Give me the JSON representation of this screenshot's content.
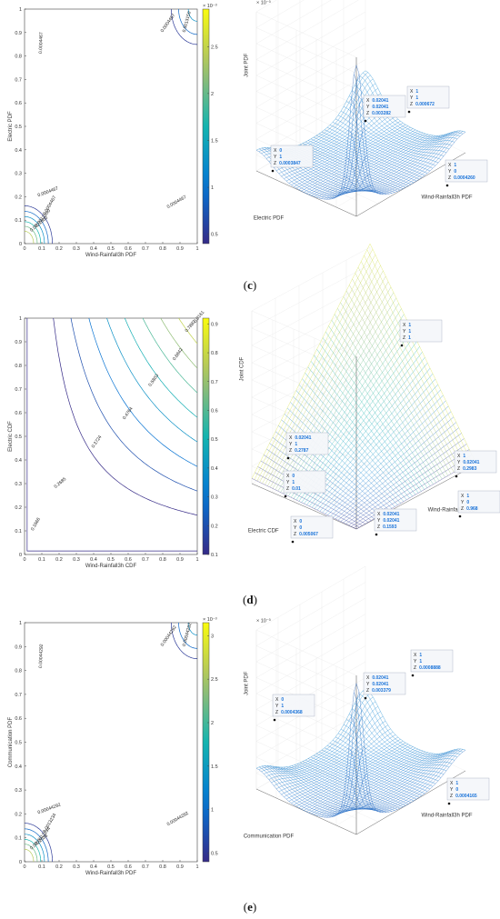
{
  "panels": [
    {
      "label_open": "(",
      "label_letter": "c",
      "label_close": ")",
      "contour": {
        "type": "contour",
        "xlabel": "Wind-Rainfall3h PDF",
        "ylabel": "Electric PDF",
        "x_ticks": [
          "0",
          "0.1",
          "0.2",
          "0.3",
          "0.4",
          "0.5",
          "0.6",
          "0.7",
          "0.8",
          "0.9",
          "1"
        ],
        "y_ticks": [
          "0",
          "0.1",
          "0.2",
          "0.3",
          "0.4",
          "0.5",
          "0.6",
          "0.7",
          "0.8",
          "0.9",
          "1"
        ],
        "xlim": [
          0,
          1
        ],
        "ylim": [
          0,
          1
        ],
        "colorbar_exp": "× 10⁻³",
        "colorbar_ticks": [
          "0.5",
          "1",
          "1.5",
          "2",
          "2.5"
        ],
        "colorbar_range": [
          0.4,
          2.9
        ],
        "contour_labels": [
          "0.0004467",
          "0.0004467",
          "0.0013150",
          "0.0004467",
          "0.0004467",
          "0.0013150",
          "0.0021800",
          "0.0004467"
        ]
      },
      "surface": {
        "type": "surface3d",
        "xlabel": "Wind-Rainfall3h PDF",
        "ylabel": "Electric PDF",
        "zlabel": "Joint PDF",
        "z_exp": "× 10⁻³",
        "peak": "narrow",
        "datatips": [
          {
            "lines": [
              [
                "X",
                "0"
              ],
              [
                "Y",
                "1"
              ],
              [
                "Z",
                "0.0003847"
              ]
            ]
          },
          {
            "lines": [
              [
                "X",
                "0.02041"
              ],
              [
                "Y",
                "0.02041"
              ],
              [
                "Z",
                "0.003282"
              ]
            ]
          },
          {
            "lines": [
              [
                "X",
                "1"
              ],
              [
                "Y",
                "1"
              ],
              [
                "Z",
                "0.000672"
              ]
            ]
          },
          {
            "lines": [
              [
                "X",
                "1"
              ],
              [
                "Y",
                "0"
              ],
              [
                "Z",
                "0.0004260"
              ]
            ]
          }
        ]
      }
    },
    {
      "label_open": "(",
      "label_letter": "d",
      "label_close": ")",
      "contour": {
        "type": "contour",
        "xlabel": "Wind-Rainfall3h CDF",
        "ylabel": "Electric CDF",
        "x_ticks": [
          "0",
          "0.1",
          "0.2",
          "0.3",
          "0.4",
          "0.5",
          "0.6",
          "0.7",
          "0.8",
          "0.9",
          "1"
        ],
        "y_ticks": [
          "0",
          "0.1",
          "0.2",
          "0.3",
          "0.4",
          "0.5",
          "0.6",
          "0.7",
          "0.8",
          "0.9",
          "1"
        ],
        "xlim": [
          0,
          1
        ],
        "ylim": [
          0,
          1
        ],
        "colorbar_exp": "",
        "colorbar_ticks": [
          "0.1",
          "0.2",
          "0.3",
          "0.4",
          "0.5",
          "0.6",
          "0.7",
          "0.8",
          "0.9"
        ],
        "colorbar_range": [
          0.1,
          0.92
        ],
        "contour_labels": [
          "0.1666",
          "0.2685",
          "0.3724",
          "0.4764",
          "0.5803",
          "0.6842",
          "0.7882",
          "0.8161"
        ]
      },
      "surface": {
        "type": "surface3d",
        "xlabel": "Wind-Rainfall3h CDF",
        "ylabel": "Electric CDF",
        "zlabel": "Joint CDF",
        "z_exp": "",
        "peak": "none",
        "datatips": [
          {
            "lines": [
              [
                "X",
                "1"
              ],
              [
                "Y",
                "1"
              ],
              [
                "Z",
                "1"
              ]
            ]
          },
          {
            "lines": [
              [
                "X",
                "0.02041"
              ],
              [
                "Y",
                "1"
              ],
              [
                "Z",
                "0.2787"
              ]
            ]
          },
          {
            "lines": [
              [
                "X",
                "1"
              ],
              [
                "Y",
                "0.02041"
              ],
              [
                "Z",
                "0.2983"
              ]
            ]
          },
          {
            "lines": [
              [
                "X",
                "0"
              ],
              [
                "Y",
                "1"
              ],
              [
                "Z",
                "0.01"
              ]
            ]
          },
          {
            "lines": [
              [
                "X",
                "0.02041"
              ],
              [
                "Y",
                "0.02041"
              ],
              [
                "Z",
                "0.1593"
              ]
            ]
          },
          {
            "lines": [
              [
                "X",
                "1"
              ],
              [
                "Y",
                "0"
              ],
              [
                "Z",
                "0.968"
              ]
            ]
          },
          {
            "lines": [
              [
                "X",
                "0"
              ],
              [
                "Y",
                "0"
              ],
              [
                "Z",
                "0.005067"
              ]
            ]
          }
        ]
      }
    },
    {
      "label_open": "(",
      "label_letter": "e",
      "label_close": ")",
      "contour": {
        "type": "contour",
        "xlabel": "Wind-Rainfall3h PDF",
        "ylabel": "Communication PDF",
        "x_ticks": [
          "0",
          "0.1",
          "0.2",
          "0.3",
          "0.4",
          "0.5",
          "0.6",
          "0.7",
          "0.8",
          "0.9",
          "1"
        ],
        "y_ticks": [
          "0",
          "0.1",
          "0.2",
          "0.3",
          "0.4",
          "0.5",
          "0.6",
          "0.7",
          "0.8",
          "0.9",
          "1"
        ],
        "xlim": [
          0,
          1
        ],
        "ylim": [
          0,
          1
        ],
        "colorbar_exp": "× 10⁻³",
        "colorbar_ticks": [
          "0.5",
          "1",
          "1.5",
          "2",
          "2.5",
          "3"
        ],
        "colorbar_range": [
          0.4,
          3.15
        ],
        "contour_labels": [
          "0.00044292",
          "0.0013234",
          "0.00044292",
          "0.00044292",
          "0.00044292",
          "0.0013234",
          "0.0022038",
          "0.00044292"
        ]
      },
      "surface": {
        "type": "surface3d",
        "xlabel": "Wind-Rainfall3h PDF",
        "ylabel": "Communication PDF",
        "zlabel": "Joint PDF",
        "z_exp": "× 10⁻³",
        "peak": "narrow",
        "datatips": [
          {
            "lines": [
              [
                "X",
                "0"
              ],
              [
                "Y",
                "1"
              ],
              [
                "Z",
                "0.0004368"
              ]
            ]
          },
          {
            "lines": [
              [
                "X",
                "0.02041"
              ],
              [
                "Y",
                "0.02041"
              ],
              [
                "Z",
                "0.003379"
              ]
            ]
          },
          {
            "lines": [
              [
                "X",
                "1"
              ],
              [
                "Y",
                "1"
              ],
              [
                "Z",
                "0.0008888"
              ]
            ]
          },
          {
            "lines": [
              [
                "X",
                "1"
              ],
              [
                "Y",
                "0"
              ],
              [
                "Z",
                "0.0004165"
              ]
            ]
          }
        ]
      }
    }
  ]
}
